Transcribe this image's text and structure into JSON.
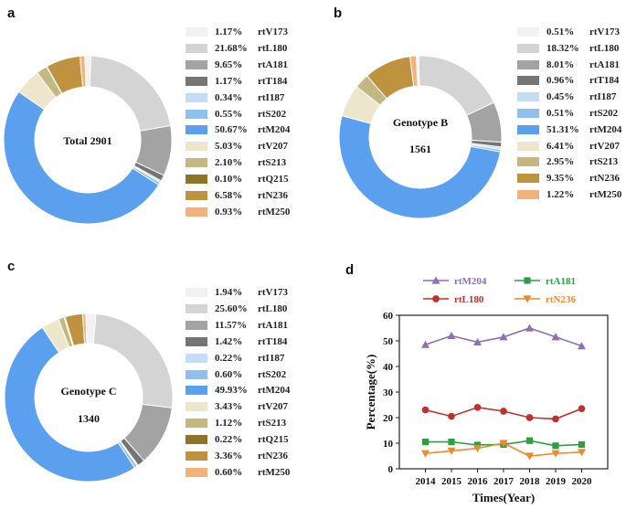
{
  "chart_data": [
    {
      "panel": "a",
      "type": "pie",
      "center_label": "Total 2901",
      "slices": [
        {
          "label": "rtV173",
          "pct": 1.17,
          "pct_text": "1.17%",
          "color": "#f2f2f2"
        },
        {
          "label": "rtL180",
          "pct": 21.68,
          "pct_text": "21.68%",
          "color": "#d4d4d4"
        },
        {
          "label": "rtA181",
          "pct": 9.65,
          "pct_text": "9.65%",
          "color": "#a3a3a3"
        },
        {
          "label": "rtT184",
          "pct": 1.17,
          "pct_text": "1.17%",
          "color": "#757575"
        },
        {
          "label": "rtI187",
          "pct": 0.34,
          "pct_text": "0.34%",
          "color": "#c4dcf6"
        },
        {
          "label": "rtS202",
          "pct": 0.55,
          "pct_text": "0.55%",
          "color": "#8ec0f0"
        },
        {
          "label": "rtM204",
          "pct": 50.67,
          "pct_text": "50.67%",
          "color": "#5ba0ee"
        },
        {
          "label": "rtV207",
          "pct": 5.03,
          "pct_text": "5.03%",
          "color": "#ede6cd"
        },
        {
          "label": "rtS213",
          "pct": 2.1,
          "pct_text": "2.10%",
          "color": "#c4b782"
        },
        {
          "label": "rtQ215",
          "pct": 0.1,
          "pct_text": "0.10%",
          "color": "#8d7429"
        },
        {
          "label": "rtN236",
          "pct": 6.58,
          "pct_text": "6.58%",
          "color": "#bf9240"
        },
        {
          "label": "rtM250",
          "pct": 0.93,
          "pct_text": "0.93%",
          "color": "#f2b27a"
        }
      ]
    },
    {
      "panel": "b",
      "type": "pie",
      "center_label": "Genotype B",
      "center_value": "1561",
      "slices": [
        {
          "label": "rtV173",
          "pct": 0.51,
          "pct_text": "0.51%",
          "color": "#f2f2f2"
        },
        {
          "label": "rtL180",
          "pct": 18.32,
          "pct_text": "18.32%",
          "color": "#d4d4d4"
        },
        {
          "label": "rtA181",
          "pct": 8.01,
          "pct_text": "8.01%",
          "color": "#a3a3a3"
        },
        {
          "label": "rtT184",
          "pct": 0.96,
          "pct_text": "0.96%",
          "color": "#757575"
        },
        {
          "label": "rtI187",
          "pct": 0.45,
          "pct_text": "0.45%",
          "color": "#c4dcf6"
        },
        {
          "label": "rtS202",
          "pct": 0.51,
          "pct_text": "0.51%",
          "color": "#8ec0f0"
        },
        {
          "label": "rtM204",
          "pct": 51.31,
          "pct_text": "51.31%",
          "color": "#5ba0ee"
        },
        {
          "label": "rtV207",
          "pct": 6.41,
          "pct_text": "6.41%",
          "color": "#ede6cd"
        },
        {
          "label": "rtS213",
          "pct": 2.95,
          "pct_text": "2.95%",
          "color": "#c4b782"
        },
        {
          "label": "rtN236",
          "pct": 9.35,
          "pct_text": "9.35%",
          "color": "#bf9240"
        },
        {
          "label": "rtM250",
          "pct": 1.22,
          "pct_text": "1.22%",
          "color": "#f2b27a"
        }
      ]
    },
    {
      "panel": "c",
      "type": "pie",
      "center_label": "Genotype C",
      "center_value": "1340",
      "slices": [
        {
          "label": "rtV173",
          "pct": 1.94,
          "pct_text": "1.94%",
          "color": "#f2f2f2"
        },
        {
          "label": "rtL180",
          "pct": 25.6,
          "pct_text": "25.60%",
          "color": "#d4d4d4"
        },
        {
          "label": "rtA181",
          "pct": 11.57,
          "pct_text": "11.57%",
          "color": "#a3a3a3"
        },
        {
          "label": "rtT184",
          "pct": 1.42,
          "pct_text": "1.42%",
          "color": "#757575"
        },
        {
          "label": "rtI187",
          "pct": 0.22,
          "pct_text": "0.22%",
          "color": "#c4dcf6"
        },
        {
          "label": "rtS202",
          "pct": 0.6,
          "pct_text": "0.60%",
          "color": "#8ec0f0"
        },
        {
          "label": "rtM204",
          "pct": 49.93,
          "pct_text": "49.93%",
          "color": "#5ba0ee"
        },
        {
          "label": "rtV207",
          "pct": 3.43,
          "pct_text": "3.43%",
          "color": "#ede6cd"
        },
        {
          "label": "rtS213",
          "pct": 1.12,
          "pct_text": "1.12%",
          "color": "#c4b782"
        },
        {
          "label": "rtQ215",
          "pct": 0.22,
          "pct_text": "0.22%",
          "color": "#8d7429"
        },
        {
          "label": "rtN236",
          "pct": 3.36,
          "pct_text": "3.36%",
          "color": "#bf9240"
        },
        {
          "label": "rtM250",
          "pct": 0.6,
          "pct_text": "0.60%",
          "color": "#f2b27a"
        }
      ]
    },
    {
      "panel": "d",
      "type": "line",
      "x": [
        2014,
        2015,
        2016,
        2017,
        2018,
        2019,
        2020
      ],
      "x_tick_labels": [
        "2014",
        "2015",
        "2016",
        "2017",
        "2018",
        "2019",
        "2020"
      ],
      "xlabel": "Times(Year)",
      "ylabel": "Percentage(%)",
      "ylim": [
        0,
        60
      ],
      "yticks": [
        0,
        10,
        20,
        30,
        40,
        50,
        60
      ],
      "ytick_labels": [
        "0",
        "10",
        "20",
        "30",
        "40",
        "50",
        "60"
      ],
      "series": [
        {
          "name": "rtM204",
          "color": "#8e6fb5",
          "marker": "triangle-up",
          "values": [
            48.5,
            52,
            49.5,
            51.5,
            55,
            51.5,
            48
          ]
        },
        {
          "name": "rtA181",
          "color": "#2e9e44",
          "marker": "square",
          "values": [
            10.5,
            10.5,
            9.3,
            9.5,
            11,
            9,
            9.5
          ]
        },
        {
          "name": "rtL180",
          "color": "#c0302c",
          "marker": "circle",
          "values": [
            23,
            20.5,
            24,
            22.5,
            20,
            19.5,
            23.5
          ]
        },
        {
          "name": "rtN236",
          "color": "#ee8a2c",
          "marker": "triangle-down",
          "values": [
            6,
            7,
            8,
            10,
            5,
            6,
            6.5
          ]
        }
      ]
    }
  ]
}
